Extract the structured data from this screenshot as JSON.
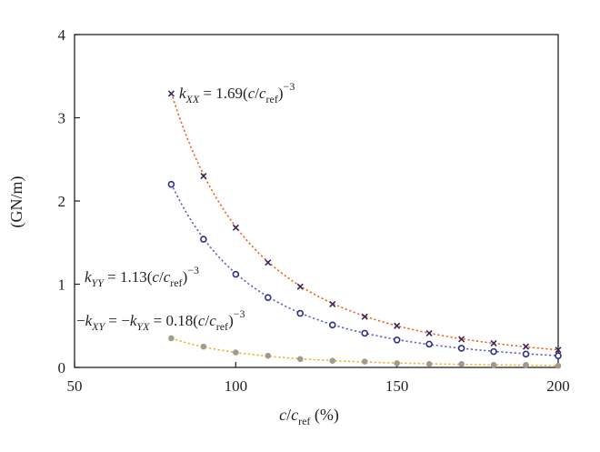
{
  "chart_data": {
    "type": "scatter",
    "title": "",
    "xlabel": "c/c_ref (%)",
    "ylabel": "(GN/m)",
    "xlim": [
      50,
      200
    ],
    "ylim": [
      0,
      4
    ],
    "x_ticks": [
      50,
      100,
      150,
      200
    ],
    "y_ticks": [
      0,
      1,
      2,
      3,
      4
    ],
    "grid": false,
    "legend": "none",
    "x": [
      80,
      90,
      100,
      110,
      120,
      130,
      140,
      150,
      160,
      170,
      180,
      190,
      200
    ],
    "series": [
      {
        "marker": "x",
        "color": "#3b2a5a",
        "fit_color": "#f0641e",
        "fit_coefficient": 1.69,
        "fit_exponent": -3,
        "values": [
          3.29,
          2.3,
          1.68,
          1.26,
          0.97,
          0.76,
          0.61,
          0.5,
          0.41,
          0.34,
          0.29,
          0.25,
          0.21
        ]
      },
      {
        "marker": "o",
        "color": "#2e2e8c",
        "fit_color": "#5a64c8",
        "fit_coefficient": 1.13,
        "fit_exponent": -3,
        "values": [
          2.2,
          1.54,
          1.12,
          0.84,
          0.65,
          0.51,
          0.41,
          0.33,
          0.28,
          0.23,
          0.19,
          0.16,
          0.14
        ]
      },
      {
        "marker": "filled-circle",
        "color": "#a09b8f",
        "fit_color": "#f0b41e",
        "fit_coefficient": 0.18,
        "fit_exponent": -3,
        "values": [
          0.35,
          0.25,
          0.18,
          0.14,
          0.1,
          0.08,
          0.07,
          0.05,
          0.04,
          0.04,
          0.03,
          0.03,
          0.02
        ]
      }
    ],
    "annotations": [
      {
        "prefix": "",
        "kk": "k",
        "k_sub": "XX",
        "equals": " = 1.69(",
        "c1": "c",
        "slash": "/",
        "c2": "c",
        "c_sub": "ref",
        "close": ")",
        "sup": "−3"
      },
      {
        "prefix": "",
        "kk": "k",
        "k_sub": "YY",
        "equals": " = 1.13(",
        "c1": "c",
        "slash": "/",
        "c2": "c",
        "c_sub": "ref",
        "close": ")",
        "sup": "−3"
      },
      {
        "prefix": "−",
        "kk": "k",
        "k_sub": "XY",
        "mid": " = −",
        "kk2": "k",
        "k2_sub": "YX",
        "equals": " = 0.18(",
        "c1": "c",
        "slash": "/",
        "c2": "c",
        "c_sub": "ref",
        "close": ")",
        "sup": "−3"
      }
    ],
    "xlabel_parts": {
      "c1": "c",
      "slash": "/",
      "c2": "c",
      "sub": "ref",
      "unit": " (%)"
    }
  }
}
